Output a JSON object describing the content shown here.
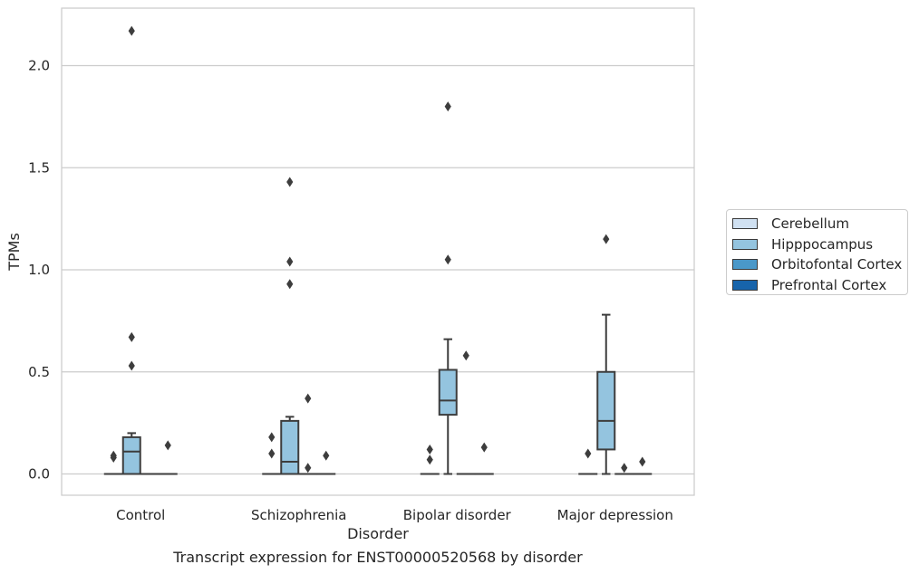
{
  "caption": "Transcript expression for ENST00000520568 by disorder",
  "chart_data": {
    "type": "box",
    "xlabel": "Disorder",
    "ylabel": "TPMs",
    "ylim": [
      -0.1,
      2.28
    ],
    "yticks": [
      "0.0",
      "0.5",
      "1.0",
      "1.5",
      "2.0"
    ],
    "ytick_values": [
      0.0,
      0.5,
      1.0,
      1.5,
      2.0
    ],
    "grid": "horizontal",
    "legend_position": "right",
    "categories": [
      "Control",
      "Schizophrenia",
      "Bipolar disorder",
      "Major depression"
    ],
    "series": [
      {
        "name": "Cerebellum",
        "color": "#d0e1f2",
        "boxes": [
          {
            "q1": 0,
            "median": 0,
            "q3": 0,
            "whislo": 0,
            "whishi": 0,
            "fliers": [
              0.08,
              0.09
            ]
          },
          {
            "q1": 0,
            "median": 0,
            "q3": 0,
            "whislo": 0,
            "whishi": 0,
            "fliers": [
              0.1,
              0.18
            ]
          },
          {
            "q1": 0,
            "median": 0,
            "q3": 0,
            "whislo": 0,
            "whishi": 0,
            "fliers": [
              0.07,
              0.12
            ]
          },
          {
            "q1": 0,
            "median": 0,
            "q3": 0,
            "whislo": 0,
            "whishi": 0,
            "fliers": [
              0.1
            ]
          }
        ]
      },
      {
        "name": "Hipppocampus",
        "color": "#94c4df",
        "boxes": [
          {
            "q1": 0,
            "median": 0.11,
            "q3": 0.18,
            "whislo": 0,
            "whishi": 0.2,
            "fliers": [
              0.53,
              0.67,
              2.17
            ]
          },
          {
            "q1": 0,
            "median": 0.06,
            "q3": 0.26,
            "whislo": 0,
            "whishi": 0.28,
            "fliers": [
              0.93,
              1.04,
              1.43
            ]
          },
          {
            "q1": 0.29,
            "median": 0.36,
            "q3": 0.51,
            "whislo": 0,
            "whishi": 0.66,
            "fliers": [
              1.05,
              1.8
            ]
          },
          {
            "q1": 0.12,
            "median": 0.26,
            "q3": 0.5,
            "whislo": 0,
            "whishi": 0.78,
            "fliers": [
              1.15
            ]
          }
        ]
      },
      {
        "name": "Orbitofontal Cortex",
        "color": "#4a98c9",
        "boxes": [
          {
            "q1": 0,
            "median": 0,
            "q3": 0,
            "whislo": 0,
            "whishi": 0,
            "fliers": []
          },
          {
            "q1": 0,
            "median": 0,
            "q3": 0,
            "whislo": 0,
            "whishi": 0,
            "fliers": [
              0.03,
              0.37
            ]
          },
          {
            "q1": 0,
            "median": 0,
            "q3": 0,
            "whislo": 0,
            "whishi": 0,
            "fliers": [
              0.58
            ]
          },
          {
            "q1": 0,
            "median": 0,
            "q3": 0,
            "whislo": 0,
            "whishi": 0,
            "fliers": [
              0.03
            ]
          }
        ]
      },
      {
        "name": "Prefrontal Cortex",
        "color": "#1764ab",
        "boxes": [
          {
            "q1": 0,
            "median": 0,
            "q3": 0,
            "whislo": 0,
            "whishi": 0,
            "fliers": [
              0.14
            ]
          },
          {
            "q1": 0,
            "median": 0,
            "q3": 0,
            "whislo": 0,
            "whishi": 0,
            "fliers": [
              0.09
            ]
          },
          {
            "q1": 0,
            "median": 0,
            "q3": 0,
            "whislo": 0,
            "whishi": 0,
            "fliers": [
              0.13
            ]
          },
          {
            "q1": 0,
            "median": 0,
            "q3": 0,
            "whislo": 0,
            "whishi": 0,
            "fliers": [
              0.06
            ]
          }
        ]
      }
    ]
  }
}
